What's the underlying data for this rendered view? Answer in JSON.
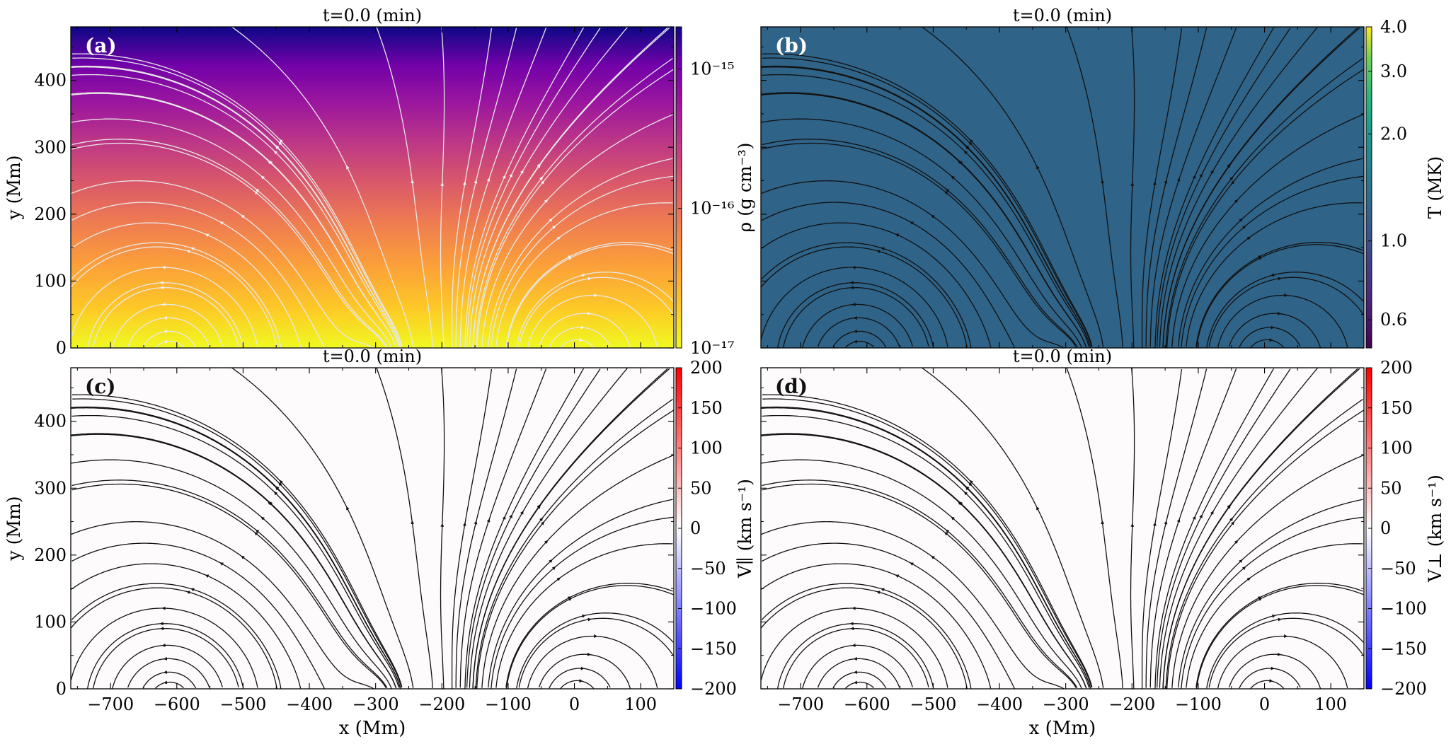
{
  "chart_data": [
    {
      "panel": "(a)",
      "type": "heatmap",
      "title": "t=0.0 (min)",
      "xlabel": "",
      "ylabel": "y  (Mm)",
      "xlim": [
        -760,
        150
      ],
      "ylim": [
        0,
        480
      ],
      "x_ticks": [
        -700,
        -600,
        -500,
        -400,
        -300,
        -200,
        -100,
        0,
        100
      ],
      "y_ticks": [
        0,
        100,
        200,
        300,
        400
      ],
      "y_tick_labels": [
        "0",
        "100",
        "200",
        "300",
        "400"
      ],
      "colorbar": {
        "label": "ρ (g cm⁻³)",
        "scale": "log",
        "range": [
          1e-17,
          2e-15
        ],
        "ticks": [
          1e-17,
          1e-16,
          1e-15
        ],
        "tick_labels": [
          "10⁻¹⁷",
          "10⁻¹⁶",
          "10⁻¹⁵"
        ],
        "colormap": "plasma"
      },
      "field_model": "stratified density, highest at y=0, decreasing with height",
      "streamline_color": "#e8e8e8"
    },
    {
      "panel": "(b)",
      "type": "heatmap",
      "title": "t=0.0 (min)",
      "xlabel": "",
      "ylabel": "",
      "xlim": [
        -760,
        150
      ],
      "ylim": [
        0,
        480
      ],
      "x_ticks": [
        -700,
        -600,
        -500,
        -400,
        -300,
        -200,
        -100,
        0,
        100
      ],
      "y_ticks": [
        0,
        100,
        200,
        300,
        400
      ],
      "colorbar": {
        "label": "T (MK)",
        "scale": "log",
        "range": [
          0.5,
          4.0
        ],
        "ticks": [
          0.6,
          1.0,
          2.0,
          3.0,
          4.0
        ],
        "tick_labels": [
          "0.6",
          "1.0",
          "2.0",
          "3.0",
          "4.0"
        ],
        "colormap": "viridis"
      },
      "uniform_value": 1.0,
      "field_color": "#2f6387",
      "streamline_color": "#111111"
    },
    {
      "panel": "(c)",
      "type": "heatmap",
      "title": "t=0.0 (min)",
      "xlabel": "x  (Mm)",
      "ylabel": "y  (Mm)",
      "xlim": [
        -760,
        150
      ],
      "ylim": [
        0,
        480
      ],
      "x_ticks": [
        -700,
        -600,
        -500,
        -400,
        -300,
        -200,
        -100,
        0,
        100
      ],
      "x_tick_labels": [
        "−700",
        "−600",
        "−500",
        "−400",
        "−300",
        "−200",
        "−100",
        "0",
        "100"
      ],
      "y_ticks": [
        0,
        100,
        200,
        300,
        400
      ],
      "y_tick_labels": [
        "0",
        "100",
        "200",
        "300",
        "400"
      ],
      "colorbar": {
        "label": "V∥  (km s⁻¹)",
        "scale": "linear",
        "range": [
          -200,
          200
        ],
        "ticks": [
          -200,
          -150,
          -100,
          -50,
          0,
          50,
          100,
          150,
          200
        ],
        "tick_labels": [
          "−200",
          "−150",
          "−100",
          "−50",
          "0",
          "50",
          "100",
          "150",
          "200"
        ],
        "colormap": "bwr"
      },
      "uniform_value": 0,
      "field_color": "#fdfbfb",
      "streamline_color": "#111111"
    },
    {
      "panel": "(d)",
      "type": "heatmap",
      "title": "t=0.0 (min)",
      "xlabel": "x  (Mm)",
      "ylabel": "",
      "xlim": [
        -760,
        150
      ],
      "ylim": [
        0,
        480
      ],
      "x_ticks": [
        -700,
        -600,
        -500,
        -400,
        -300,
        -200,
        -100,
        0,
        100
      ],
      "x_tick_labels": [
        "−700",
        "−600",
        "−500",
        "−400",
        "−300",
        "−200",
        "−100",
        "0",
        "100"
      ],
      "y_ticks": [
        0,
        100,
        200,
        300,
        400
      ],
      "colorbar": {
        "label": "V⊥  (km s⁻¹)",
        "scale": "linear",
        "range": [
          -200,
          200
        ],
        "ticks": [
          -200,
          -150,
          -100,
          -50,
          0,
          50,
          100,
          150,
          200
        ],
        "tick_labels": [
          "−200",
          "−150",
          "−100",
          "−50",
          "0",
          "50",
          "100",
          "150",
          "200"
        ],
        "colormap": "bwr"
      },
      "uniform_value": 0,
      "field_color": "#fdfbfb",
      "streamline_color": "#111111"
    }
  ],
  "field_sources": [
    {
      "x": -610,
      "y": -20,
      "strength": 1.0
    },
    {
      "x": 0,
      "y": -20,
      "strength": -1.0
    },
    {
      "x": -300,
      "y": -20,
      "strength": 0.35
    }
  ],
  "streamline_seeds": [
    [
      -610,
      10
    ],
    [
      -610,
      25
    ],
    [
      -610,
      45
    ],
    [
      -610,
      65
    ],
    [
      -610,
      90
    ],
    [
      -610,
      120
    ],
    [
      -610,
      150
    ],
    [
      -610,
      185
    ],
    [
      -560,
      230
    ],
    [
      -520,
      180
    ],
    [
      -740,
      420
    ],
    [
      -700,
      380
    ],
    [
      -660,
      340
    ],
    [
      -600,
      300
    ],
    [
      -520,
      260
    ],
    [
      -470,
      310
    ],
    [
      -420,
      390
    ],
    [
      -380,
      230
    ],
    [
      -360,
      150
    ],
    [
      -300,
      80
    ],
    [
      -280,
      40
    ],
    [
      -230,
      130
    ],
    [
      -200,
      230
    ],
    [
      -150,
      330
    ],
    [
      -100,
      430
    ],
    [
      -50,
      460
    ],
    [
      0,
      12
    ],
    [
      0,
      30
    ],
    [
      0,
      50
    ],
    [
      0,
      75
    ],
    [
      0,
      105
    ],
    [
      0,
      140
    ],
    [
      0,
      180
    ],
    [
      0,
      220
    ],
    [
      0,
      260
    ],
    [
      0,
      300
    ],
    [
      0,
      340
    ],
    [
      0,
      380
    ],
    [
      0,
      420
    ],
    [
      0,
      455
    ],
    [
      80,
      100
    ],
    [
      110,
      250
    ],
    [
      130,
      420
    ],
    [
      -740,
      120
    ],
    [
      -720,
      40
    ],
    [
      -150,
      40
    ],
    [
      -100,
      15
    ]
  ]
}
